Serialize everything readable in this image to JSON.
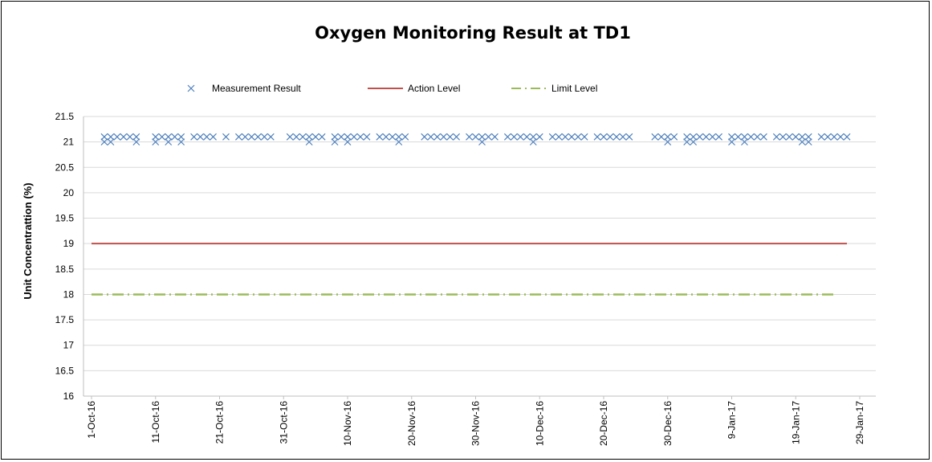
{
  "chart_data": {
    "type": "line",
    "title": "Oxygen Monitoring Result at TD1",
    "xlabel": "",
    "ylabel": "Unit Concentrattion (%)",
    "ylim": [
      16,
      21.5
    ],
    "y_ticks": [
      "21.5",
      "21",
      "20.5",
      "20",
      "19.5",
      "19",
      "18.5",
      "18",
      "17.5",
      "17",
      "16.5",
      "16"
    ],
    "x_range": [
      "2016-10-01",
      "2017-01-29"
    ],
    "x_tick_labels": [
      {
        "date": "2016-10-01",
        "label": "1-Oct-16"
      },
      {
        "date": "2016-10-11",
        "label": "11-Oct-16"
      },
      {
        "date": "2016-10-21",
        "label": "21-Oct-16"
      },
      {
        "date": "2016-10-31",
        "label": "31-Oct-16"
      },
      {
        "date": "2016-11-10",
        "label": "10-Nov-16"
      },
      {
        "date": "2016-11-20",
        "label": "20-Nov-16"
      },
      {
        "date": "2016-11-30",
        "label": "30-Nov-16"
      },
      {
        "date": "2016-12-10",
        "label": "10-Dec-16"
      },
      {
        "date": "2016-12-20",
        "label": "20-Dec-16"
      },
      {
        "date": "2016-12-30",
        "label": "30-Dec-16"
      },
      {
        "date": "2017-01-09",
        "label": "9-Jan-17"
      },
      {
        "date": "2017-01-19",
        "label": "19-Jan-17"
      },
      {
        "date": "2017-01-29",
        "label": "29-Jan-17"
      }
    ],
    "grid": true,
    "legend_position": "top",
    "series": [
      {
        "name": "Measurement Result",
        "style": "marker-x",
        "color": "#4f81bd",
        "points": [
          [
            "2016-10-03",
            21.1
          ],
          [
            "2016-10-03",
            21.0
          ],
          [
            "2016-10-04",
            21.1
          ],
          [
            "2016-10-04",
            21.0
          ],
          [
            "2016-10-05",
            21.1
          ],
          [
            "2016-10-06",
            21.1
          ],
          [
            "2016-10-07",
            21.1
          ],
          [
            "2016-10-08",
            21.1
          ],
          [
            "2016-10-08",
            21.0
          ],
          [
            "2016-10-11",
            21.1
          ],
          [
            "2016-10-11",
            21.0
          ],
          [
            "2016-10-12",
            21.1
          ],
          [
            "2016-10-13",
            21.1
          ],
          [
            "2016-10-13",
            21.0
          ],
          [
            "2016-10-14",
            21.1
          ],
          [
            "2016-10-15",
            21.1
          ],
          [
            "2016-10-15",
            21.0
          ],
          [
            "2016-10-17",
            21.1
          ],
          [
            "2016-10-18",
            21.1
          ],
          [
            "2016-10-19",
            21.1
          ],
          [
            "2016-10-20",
            21.1
          ],
          [
            "2016-10-22",
            21.1
          ],
          [
            "2016-10-24",
            21.1
          ],
          [
            "2016-10-25",
            21.1
          ],
          [
            "2016-10-26",
            21.1
          ],
          [
            "2016-10-27",
            21.1
          ],
          [
            "2016-10-28",
            21.1
          ],
          [
            "2016-10-29",
            21.1
          ],
          [
            "2016-11-01",
            21.1
          ],
          [
            "2016-11-02",
            21.1
          ],
          [
            "2016-11-03",
            21.1
          ],
          [
            "2016-11-04",
            21.1
          ],
          [
            "2016-11-04",
            21.0
          ],
          [
            "2016-11-05",
            21.1
          ],
          [
            "2016-11-06",
            21.1
          ],
          [
            "2016-11-08",
            21.1
          ],
          [
            "2016-11-08",
            21.0
          ],
          [
            "2016-11-09",
            21.1
          ],
          [
            "2016-11-10",
            21.1
          ],
          [
            "2016-11-10",
            21.0
          ],
          [
            "2016-11-11",
            21.1
          ],
          [
            "2016-11-12",
            21.1
          ],
          [
            "2016-11-13",
            21.1
          ],
          [
            "2016-11-15",
            21.1
          ],
          [
            "2016-11-16",
            21.1
          ],
          [
            "2016-11-17",
            21.1
          ],
          [
            "2016-11-18",
            21.1
          ],
          [
            "2016-11-18",
            21.0
          ],
          [
            "2016-11-19",
            21.1
          ],
          [
            "2016-11-22",
            21.1
          ],
          [
            "2016-11-23",
            21.1
          ],
          [
            "2016-11-24",
            21.1
          ],
          [
            "2016-11-25",
            21.1
          ],
          [
            "2016-11-26",
            21.1
          ],
          [
            "2016-11-27",
            21.1
          ],
          [
            "2016-11-29",
            21.1
          ],
          [
            "2016-11-30",
            21.1
          ],
          [
            "2016-12-01",
            21.1
          ],
          [
            "2016-12-01",
            21.0
          ],
          [
            "2016-12-02",
            21.1
          ],
          [
            "2016-12-03",
            21.1
          ],
          [
            "2016-12-05",
            21.1
          ],
          [
            "2016-12-06",
            21.1
          ],
          [
            "2016-12-07",
            21.1
          ],
          [
            "2016-12-08",
            21.1
          ],
          [
            "2016-12-09",
            21.1
          ],
          [
            "2016-12-09",
            21.0
          ],
          [
            "2016-12-10",
            21.1
          ],
          [
            "2016-12-12",
            21.1
          ],
          [
            "2016-12-13",
            21.1
          ],
          [
            "2016-12-14",
            21.1
          ],
          [
            "2016-12-15",
            21.1
          ],
          [
            "2016-12-16",
            21.1
          ],
          [
            "2016-12-17",
            21.1
          ],
          [
            "2016-12-19",
            21.1
          ],
          [
            "2016-12-20",
            21.1
          ],
          [
            "2016-12-21",
            21.1
          ],
          [
            "2016-12-22",
            21.1
          ],
          [
            "2016-12-23",
            21.1
          ],
          [
            "2016-12-24",
            21.1
          ],
          [
            "2016-12-28",
            21.1
          ],
          [
            "2016-12-29",
            21.1
          ],
          [
            "2016-12-30",
            21.1
          ],
          [
            "2016-12-30",
            21.0
          ],
          [
            "2016-12-31",
            21.1
          ],
          [
            "2017-01-02",
            21.1
          ],
          [
            "2017-01-02",
            21.0
          ],
          [
            "2017-01-03",
            21.1
          ],
          [
            "2017-01-03",
            21.0
          ],
          [
            "2017-01-04",
            21.1
          ],
          [
            "2017-01-05",
            21.1
          ],
          [
            "2017-01-06",
            21.1
          ],
          [
            "2017-01-07",
            21.1
          ],
          [
            "2017-01-09",
            21.1
          ],
          [
            "2017-01-09",
            21.0
          ],
          [
            "2017-01-10",
            21.1
          ],
          [
            "2017-01-11",
            21.1
          ],
          [
            "2017-01-11",
            21.0
          ],
          [
            "2017-01-12",
            21.1
          ],
          [
            "2017-01-13",
            21.1
          ],
          [
            "2017-01-14",
            21.1
          ],
          [
            "2017-01-16",
            21.1
          ],
          [
            "2017-01-17",
            21.1
          ],
          [
            "2017-01-18",
            21.1
          ],
          [
            "2017-01-19",
            21.1
          ],
          [
            "2017-01-20",
            21.1
          ],
          [
            "2017-01-20",
            21.0
          ],
          [
            "2017-01-21",
            21.1
          ],
          [
            "2017-01-21",
            21.0
          ],
          [
            "2017-01-23",
            21.1
          ],
          [
            "2017-01-24",
            21.1
          ],
          [
            "2017-01-25",
            21.1
          ],
          [
            "2017-01-26",
            21.1
          ],
          [
            "2017-01-27",
            21.1
          ]
        ]
      },
      {
        "name": "Action Level",
        "style": "solid-line",
        "color": "#c0504d",
        "points": [
          [
            "2016-10-01",
            19
          ],
          [
            "2017-01-27",
            19
          ]
        ]
      },
      {
        "name": "Limit Level",
        "style": "dash-dot-line",
        "color": "#9bbb59",
        "points": [
          [
            "2016-10-01",
            18
          ],
          [
            "2017-01-25",
            18
          ]
        ]
      }
    ]
  }
}
